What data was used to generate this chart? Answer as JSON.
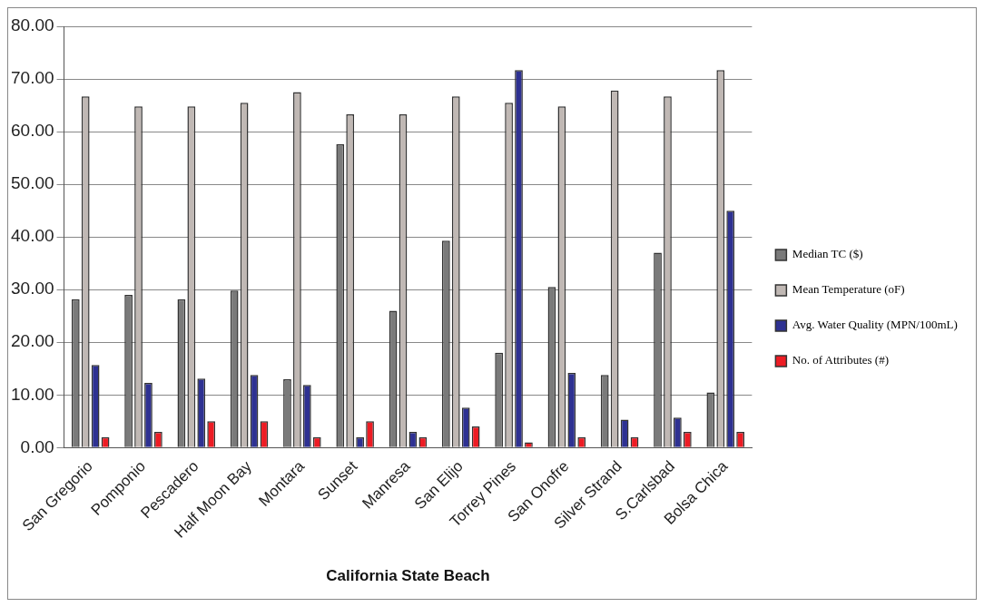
{
  "chart_data": {
    "type": "bar",
    "xlabel": "California State Beach",
    "categories": [
      "San Gregorio",
      "Pomponio",
      "Pescadero",
      "Half Moon Bay",
      "Montara",
      "Sunset",
      "Manresa",
      "San Elijo",
      "Torrey Pines",
      "San Onofre",
      "Silver Strand",
      "S.Carlsbad",
      "Bolsa Chica"
    ],
    "series": [
      {
        "name": "Median TC ($)",
        "color": "#7a7a7a",
        "values": [
          28.2,
          29.0,
          28.2,
          29.8,
          13.0,
          57.6,
          26.0,
          39.3,
          18.0,
          30.5,
          13.8,
          37.0,
          10.5
        ]
      },
      {
        "name": "Mean Temperature (oF)",
        "color": "#c0b8b4",
        "values": [
          66.7,
          64.8,
          64.8,
          65.5,
          67.5,
          63.3,
          63.3,
          66.7,
          65.5,
          64.8,
          67.8,
          66.7,
          71.7
        ]
      },
      {
        "name": "Avg. Water Quality (MPN/100mL)",
        "color": "#2e3192",
        "values": [
          15.7,
          12.3,
          13.1,
          13.8,
          11.9,
          2.0,
          3.0,
          7.6,
          71.7,
          14.2,
          5.3,
          5.7,
          45.0
        ]
      },
      {
        "name": "No. of Attributes (#)",
        "color": "#ed1c24",
        "values": [
          2,
          3,
          5,
          5,
          2,
          5,
          2,
          4,
          1,
          2,
          2,
          3,
          3
        ]
      }
    ],
    "ylim": [
      0,
      80
    ],
    "yticks": [
      {
        "value": 0,
        "label": "0.00"
      },
      {
        "value": 10,
        "label": "10.00"
      },
      {
        "value": 20,
        "label": "20.00"
      },
      {
        "value": 30,
        "label": "30.00"
      },
      {
        "value": 40,
        "label": "40.00"
      },
      {
        "value": 50,
        "label": "50.00"
      },
      {
        "value": 60,
        "label": "60.00"
      },
      {
        "value": 70,
        "label": "70.00"
      },
      {
        "value": 80,
        "label": "80.00"
      }
    ],
    "grid": "y",
    "legend": "right"
  }
}
